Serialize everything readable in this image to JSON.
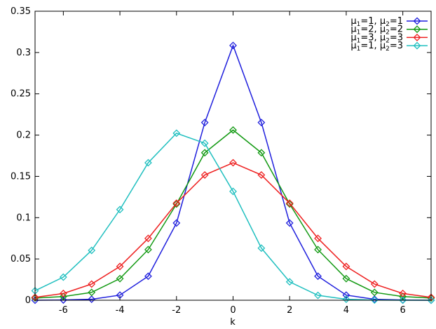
{
  "chart_data": {
    "type": "line",
    "xlabel": "k",
    "ylabel": "",
    "xlim": [
      -7,
      7
    ],
    "ylim": [
      0,
      0.35
    ],
    "x_ticks": [
      -6,
      -4,
      -2,
      0,
      2,
      4,
      6
    ],
    "x_tick_labels": [
      "-6",
      "-4",
      "-2",
      "0",
      "2",
      "4",
      "6"
    ],
    "y_ticks": [
      0,
      0.05,
      0.1,
      0.15,
      0.2,
      0.25,
      0.3,
      0.35
    ],
    "y_tick_labels": [
      "0",
      "0.05",
      "0.1",
      "0.15",
      "0.2",
      "0.25",
      "0.3",
      "0.35"
    ],
    "grid": false,
    "legend_position": "top-right",
    "marker": "diamond",
    "x": [
      -7,
      -6,
      -5,
      -4,
      -3,
      -2,
      -1,
      0,
      1,
      2,
      3,
      4,
      5,
      6,
      7
    ],
    "series": [
      {
        "name": "μ1=1, μ2=1",
        "label_parts": [
          "μ",
          "1",
          "=1, μ",
          "2",
          "=1"
        ],
        "color": "#1f1fdd",
        "values": [
          0.0,
          0.0003,
          0.0012,
          0.0062,
          0.0291,
          0.0935,
          0.2152,
          0.3085,
          0.2152,
          0.0935,
          0.0291,
          0.0062,
          0.0012,
          0.0003,
          0.0
        ]
      },
      {
        "name": "μ1=2, μ2=2",
        "label_parts": [
          "μ",
          "1",
          "=2, μ",
          "2",
          "=2"
        ],
        "color": "#119911",
        "values": [
          0.0027,
          0.0045,
          0.0095,
          0.0262,
          0.0613,
          0.1165,
          0.1786,
          0.2061,
          0.1786,
          0.1165,
          0.0613,
          0.0262,
          0.0095,
          0.0045,
          0.0027
        ]
      },
      {
        "name": "μ1=3, μ2=3",
        "label_parts": [
          "μ",
          "1",
          "=3, μ",
          "2",
          "=3"
        ],
        "color": "#ee1f1f",
        "values": [
          0.0035,
          0.0082,
          0.0196,
          0.0409,
          0.0749,
          0.1175,
          0.1517,
          0.1665,
          0.1517,
          0.1175,
          0.0749,
          0.0409,
          0.0196,
          0.0082,
          0.0035
        ]
      },
      {
        "name": "μ1=1, μ2=3",
        "label_parts": [
          "μ",
          "1",
          "=1, μ",
          "2",
          "=3"
        ],
        "color": "#1fbfbf",
        "values": [
          0.0115,
          0.028,
          0.0604,
          0.1098,
          0.1665,
          0.2023,
          0.1901,
          0.1318,
          0.0631,
          0.0223,
          0.0059,
          0.0012,
          0.0002,
          0.0,
          0.0
        ]
      }
    ]
  }
}
